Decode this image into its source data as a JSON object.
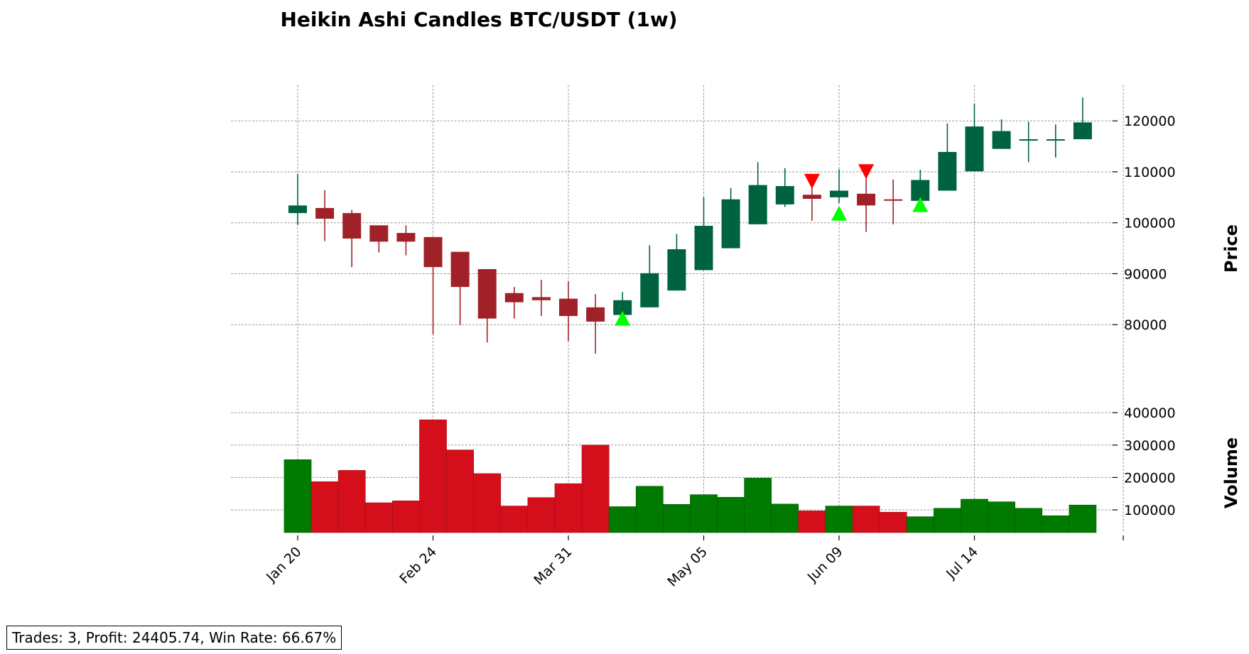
{
  "chart_data": {
    "type": "candlestick",
    "title": "Heikin Ashi Candles BTC/USDT (1w)",
    "price_panel": {
      "ylabel": "Price",
      "ylim": [
        64000,
        127000
      ],
      "yticks": [
        80000,
        90000,
        100000,
        110000,
        120000
      ],
      "ytick_labels": [
        "80000",
        "90000",
        "100000",
        "110000",
        "120000"
      ],
      "grid": true,
      "candles": [
        {
          "open": 101900,
          "close": 103400,
          "high": 109600,
          "low": 99600,
          "dir": "up"
        },
        {
          "open": 102900,
          "close": 100800,
          "high": 106400,
          "low": 96400,
          "dir": "down"
        },
        {
          "open": 101900,
          "close": 96900,
          "high": 102500,
          "low": 91300,
          "dir": "down"
        },
        {
          "open": 99500,
          "close": 96300,
          "high": 99500,
          "low": 94200,
          "dir": "down"
        },
        {
          "open": 98000,
          "close": 96300,
          "high": 99500,
          "low": 93600,
          "dir": "down"
        },
        {
          "open": 97200,
          "close": 91300,
          "high": 97200,
          "low": 78100,
          "dir": "down"
        },
        {
          "open": 94300,
          "close": 87400,
          "high": 94300,
          "low": 79900,
          "dir": "down"
        },
        {
          "open": 90900,
          "close": 81200,
          "high": 90900,
          "low": 76500,
          "dir": "down"
        },
        {
          "open": 86200,
          "close": 84400,
          "high": 87400,
          "low": 81200,
          "dir": "down"
        },
        {
          "open": 85400,
          "close": 84800,
          "high": 88800,
          "low": 81700,
          "dir": "down"
        },
        {
          "open": 85100,
          "close": 81700,
          "high": 88500,
          "low": 76800,
          "dir": "down"
        },
        {
          "open": 83400,
          "close": 80600,
          "high": 86000,
          "low": 74300,
          "dir": "down"
        },
        {
          "open": 81900,
          "close": 84800,
          "high": 86400,
          "low": 81900,
          "dir": "up"
        },
        {
          "open": 83400,
          "close": 90100,
          "high": 95600,
          "low": 83400,
          "dir": "up"
        },
        {
          "open": 86700,
          "close": 94800,
          "high": 97800,
          "low": 86700,
          "dir": "up"
        },
        {
          "open": 90700,
          "close": 99400,
          "high": 105000,
          "low": 90700,
          "dir": "up"
        },
        {
          "open": 95000,
          "close": 104600,
          "high": 106800,
          "low": 95000,
          "dir": "up"
        },
        {
          "open": 99700,
          "close": 107400,
          "high": 111900,
          "low": 99700,
          "dir": "up"
        },
        {
          "open": 103600,
          "close": 107200,
          "high": 110700,
          "low": 103100,
          "dir": "up"
        },
        {
          "open": 105500,
          "close": 104700,
          "high": 107300,
          "low": 100400,
          "dir": "down"
        },
        {
          "open": 105000,
          "close": 106300,
          "high": 110500,
          "low": 103900,
          "dir": "up"
        },
        {
          "open": 105700,
          "close": 103400,
          "high": 108900,
          "low": 98200,
          "dir": "down"
        },
        {
          "open": 104600,
          "close": 104400,
          "high": 108500,
          "low": 99700,
          "dir": "down"
        },
        {
          "open": 104300,
          "close": 108400,
          "high": 110400,
          "low": 104300,
          "dir": "up"
        },
        {
          "open": 106300,
          "close": 113900,
          "high": 119500,
          "low": 106300,
          "dir": "up"
        },
        {
          "open": 110100,
          "close": 118900,
          "high": 123300,
          "low": 110100,
          "dir": "up"
        },
        {
          "open": 114500,
          "close": 118000,
          "high": 120300,
          "low": 114500,
          "dir": "up"
        },
        {
          "open": 116300,
          "close": 116400,
          "high": 119800,
          "low": 111900,
          "dir": "up"
        },
        {
          "open": 116300,
          "close": 116400,
          "high": 119300,
          "low": 112800,
          "dir": "up"
        },
        {
          "open": 116400,
          "close": 119700,
          "high": 124600,
          "low": 116400,
          "dir": "up"
        }
      ],
      "buy_signals": [
        {
          "index": 12,
          "price": 81200
        },
        {
          "index": 20,
          "price": 101800
        },
        {
          "index": 23,
          "price": 103500
        }
      ],
      "sell_signals": [
        {
          "index": 19,
          "price": 108200
        },
        {
          "index": 21,
          "price": 110100
        }
      ]
    },
    "volume_panel": {
      "ylabel": "Volume",
      "ylim": [
        30000,
        420000
      ],
      "yticks": [
        100000,
        200000,
        300000,
        400000
      ],
      "ytick_labels": [
        "100000",
        "200000",
        "300000",
        "400000"
      ],
      "values": [
        255000,
        187000,
        222000,
        122000,
        128000,
        378000,
        285000,
        212000,
        112000,
        138000,
        181000,
        300000,
        110000,
        173000,
        117000,
        147000,
        139000,
        198000,
        118000,
        97000,
        112000,
        112000,
        93000,
        79000,
        105000,
        133000,
        125000,
        105000,
        82000,
        115000
      ],
      "grid": true
    },
    "x_axis": {
      "tick_labels": [
        "Jan 20",
        "Feb 24",
        "Mar 31",
        "May 05",
        "Jun 09",
        "Jul 14"
      ],
      "tick_indices": [
        0,
        5,
        10,
        15,
        20,
        25
      ],
      "extra_tick_index": 30.5
    }
  },
  "colors": {
    "up_candle": "#006340",
    "down_candle": "#a02128",
    "up_volume": "#007a00",
    "down_volume": "#d40f1b",
    "buy_marker": "#00ff00",
    "sell_marker": "#ff0000",
    "grid": "#9a9a9a"
  },
  "stats_text": "Trades: 3, Profit: 24405.74, Win Rate: 66.67%"
}
